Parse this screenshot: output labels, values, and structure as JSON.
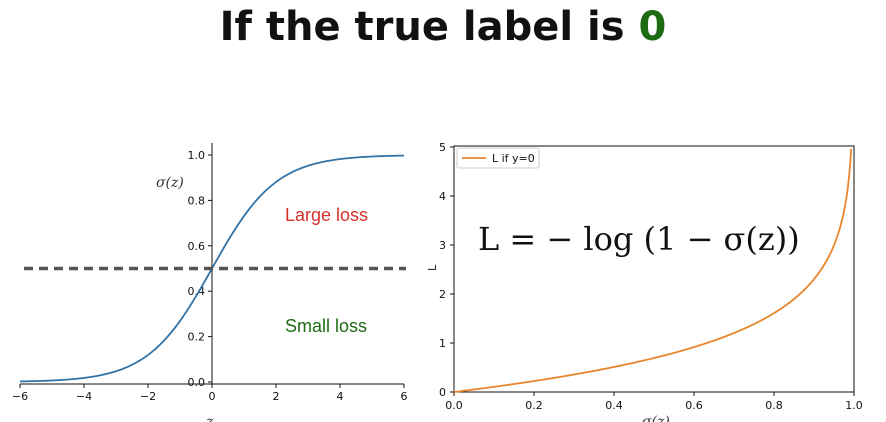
{
  "title": {
    "prefix": "If the true label is ",
    "label": "0"
  },
  "colors": {
    "sigmoid": "#3274a8",
    "loss": "#e8852d",
    "large_loss": "#d6302a",
    "small_loss": "#1e6b14",
    "threshold": "#555555",
    "label_green": "#1e6b14"
  },
  "chart_data": [
    {
      "type": "line",
      "title": "",
      "xlabel": "z",
      "ylabel": "σ(z)",
      "xlim": [
        -6,
        6
      ],
      "ylim": [
        0,
        1
      ],
      "x_ticks": [
        "−6",
        "−4",
        "−2",
        "0",
        "2",
        "4",
        "6"
      ],
      "y_ticks": [
        "0.0",
        "0.2",
        "0.4",
        "0.6",
        "0.8",
        "1.0"
      ],
      "series": [
        {
          "name": "",
          "function": "sigmoid",
          "x_range": [
            -6,
            6
          ]
        }
      ],
      "threshold_y": 0.5,
      "annotations": [
        "Large loss",
        "Small loss"
      ]
    },
    {
      "type": "line",
      "title": "",
      "xlabel": "σ(z)",
      "ylabel": "L",
      "xlim": [
        0,
        1
      ],
      "ylim": [
        0,
        5
      ],
      "x_ticks": [
        "0.0",
        "0.2",
        "0.4",
        "0.6",
        "0.8",
        "1.0"
      ],
      "y_ticks": [
        "0",
        "1",
        "2",
        "3",
        "4",
        "5"
      ],
      "series": [
        {
          "name": "L if y=0",
          "function": "-log(1-x)",
          "x_range": [
            0,
            0.993
          ]
        }
      ],
      "legend": "top-left",
      "formula": "L = − log (1 − σ(z))"
    }
  ]
}
